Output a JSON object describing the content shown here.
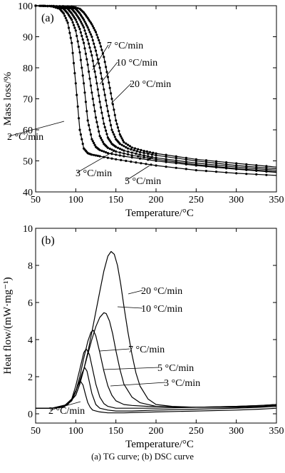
{
  "caption": "(a)  TG  curve; (b) DSC curve",
  "chart_data": [
    {
      "type": "line",
      "panel_label": "(a)",
      "xlabel": "Temperature/°C",
      "ylabel": "Mass loss/%",
      "xlim": [
        50,
        350
      ],
      "ylim": [
        40,
        100
      ],
      "xticks": [
        50,
        100,
        150,
        200,
        250,
        300,
        350
      ],
      "yticks": [
        40,
        50,
        60,
        70,
        80,
        90,
        100
      ],
      "series": [
        {
          "name": "2 °C/min",
          "x": [
            50,
            70,
            80,
            85,
            90,
            95,
            100,
            105,
            110,
            115,
            120,
            130,
            150,
            175,
            200,
            250,
            300,
            350
          ],
          "y": [
            100,
            99.8,
            99,
            97.5,
            94.5,
            88,
            75,
            60,
            54,
            52.5,
            52,
            51.5,
            50.5,
            49.5,
            48.5,
            47,
            46,
            45.3
          ]
        },
        {
          "name": "3 °C/min",
          "x": [
            50,
            75,
            85,
            90,
            95,
            100,
            105,
            110,
            115,
            120,
            125,
            130,
            140,
            160,
            200,
            250,
            300,
            350
          ],
          "y": [
            100,
            99.8,
            99,
            97.5,
            95.5,
            92,
            85,
            75,
            63,
            57,
            54.5,
            53.5,
            52.5,
            51.5,
            50,
            48.5,
            47.3,
            46.3
          ]
        },
        {
          "name": "5 °C/min",
          "x": [
            50,
            80,
            90,
            95,
            100,
            105,
            110,
            115,
            120,
            125,
            130,
            135,
            140,
            150,
            170,
            200,
            250,
            300,
            350
          ],
          "y": [
            100,
            99.8,
            99,
            97.5,
            95.5,
            92.5,
            88,
            81,
            72,
            64,
            58,
            55.5,
            54.2,
            53,
            51.8,
            50.5,
            48.8,
            47.5,
            46.5
          ]
        },
        {
          "name": "7 °C/min",
          "x": [
            50,
            85,
            95,
            100,
            105,
            110,
            115,
            120,
            125,
            130,
            135,
            140,
            145,
            150,
            160,
            180,
            200,
            250,
            300,
            350
          ],
          "y": [
            100,
            99.8,
            99,
            97.5,
            95.5,
            93,
            89,
            84,
            77,
            69,
            62,
            57.5,
            55.5,
            54.5,
            53.3,
            52,
            51,
            49.3,
            48,
            47
          ]
        },
        {
          "name": "10 °C/min",
          "x": [
            50,
            90,
            100,
            105,
            110,
            115,
            120,
            125,
            130,
            135,
            140,
            145,
            150,
            155,
            165,
            180,
            200,
            250,
            300,
            350
          ],
          "y": [
            100,
            99.8,
            99,
            97.5,
            95.5,
            93,
            90,
            85.5,
            80,
            73,
            66,
            60,
            57,
            55.5,
            54,
            52.8,
            51.8,
            50,
            48.5,
            47.5
          ]
        },
        {
          "name": "20 °C/min",
          "x": [
            50,
            95,
            105,
            110,
            115,
            120,
            125,
            130,
            135,
            140,
            145,
            150,
            155,
            160,
            170,
            185,
            200,
            250,
            300,
            350
          ],
          "y": [
            100,
            99.8,
            99,
            97.8,
            96,
            94,
            91.5,
            88,
            83.5,
            77,
            70,
            63,
            58.5,
            56,
            54.3,
            53.2,
            52.4,
            50.5,
            49.2,
            48
          ]
        }
      ],
      "annotations": [
        "7 °C/min",
        "10 °C/min",
        "20 °C/min",
        "2 °C/min",
        "3 °C/min",
        "5 °C/min"
      ]
    },
    {
      "type": "line",
      "panel_label": "(b)",
      "xlabel": "Temperature/°C",
      "ylabel": "Heat flow/(mW·mg⁻¹)",
      "xlim": [
        50,
        350
      ],
      "ylim": [
        -0.5,
        10
      ],
      "xticks": [
        50,
        100,
        150,
        200,
        250,
        300,
        350
      ],
      "yticks": [
        0,
        2,
        4,
        6,
        8,
        10
      ],
      "series": [
        {
          "name": "2 °C/min",
          "x": [
            50,
            70,
            80,
            90,
            95,
            100,
            103,
            106,
            109,
            112,
            115,
            118,
            121,
            125,
            130,
            140,
            160,
            200,
            250,
            300,
            330,
            350
          ],
          "y": [
            0.3,
            0.3,
            0.35,
            0.5,
            0.8,
            1.25,
            1.55,
            1.75,
            1.55,
            1.05,
            0.6,
            0.35,
            0.2,
            0.15,
            0.1,
            0.05,
            0.05,
            0.1,
            0.15,
            0.2,
            0.25,
            0.3
          ]
        },
        {
          "name": "3 °C/min",
          "x": [
            50,
            70,
            85,
            95,
            100,
            105,
            108,
            111,
            114,
            117,
            120,
            125,
            130,
            140,
            150,
            170,
            200,
            250,
            300,
            330,
            350
          ],
          "y": [
            0.3,
            0.3,
            0.35,
            0.7,
            1.2,
            1.8,
            2.2,
            2.5,
            2.3,
            1.7,
            1.1,
            0.5,
            0.3,
            0.2,
            0.15,
            0.15,
            0.2,
            0.25,
            0.3,
            0.35,
            0.4
          ]
        },
        {
          "name": "5 °C/min",
          "x": [
            50,
            70,
            85,
            95,
            100,
            105,
            110,
            113,
            117,
            121,
            125,
            130,
            135,
            140,
            150,
            160,
            180,
            200,
            250,
            300,
            330,
            350
          ],
          "y": [
            0.3,
            0.3,
            0.4,
            0.8,
            1.5,
            2.4,
            3.3,
            3.5,
            3.2,
            2.4,
            1.6,
            0.9,
            0.55,
            0.4,
            0.3,
            0.3,
            0.3,
            0.3,
            0.35,
            0.4,
            0.45,
            0.5
          ]
        },
        {
          "name": "7 °C/min",
          "x": [
            50,
            70,
            85,
            95,
            100,
            105,
            110,
            115,
            119,
            122,
            125,
            130,
            135,
            140,
            145,
            150,
            160,
            170,
            190,
            250,
            300,
            330,
            350
          ],
          "y": [
            0.3,
            0.3,
            0.4,
            0.7,
            1.2,
            2,
            3,
            3.9,
            4.4,
            4.5,
            4.2,
            3.3,
            2.3,
            1.5,
            1,
            0.7,
            0.5,
            0.45,
            0.4,
            0.35,
            0.4,
            0.45,
            0.5
          ]
        },
        {
          "name": "10 °C/min",
          "x": [
            50,
            70,
            90,
            100,
            105,
            110,
            115,
            120,
            125,
            130,
            135,
            138,
            142,
            146,
            150,
            155,
            160,
            170,
            180,
            200,
            250,
            300,
            330,
            350
          ],
          "y": [
            0.3,
            0.3,
            0.5,
            1,
            1.6,
            2.4,
            3.2,
            4,
            4.7,
            5.2,
            5.45,
            5.4,
            5,
            4.3,
            3.4,
            2.4,
            1.6,
            0.9,
            0.6,
            0.4,
            0.35,
            0.35,
            0.4,
            0.45
          ]
        },
        {
          "name": "20 °C/min",
          "x": [
            50,
            70,
            90,
            100,
            105,
            110,
            115,
            120,
            125,
            130,
            135,
            140,
            144,
            148,
            152,
            156,
            160,
            165,
            170,
            175,
            180,
            190,
            200,
            220,
            250,
            300,
            330,
            350
          ],
          "y": [
            0.3,
            0.3,
            0.5,
            1,
            1.6,
            2.4,
            3.3,
            4.4,
            5.5,
            6.6,
            7.7,
            8.5,
            8.75,
            8.6,
            8,
            7,
            5.8,
            4.4,
            3.2,
            2.2,
            1.5,
            0.8,
            0.5,
            0.4,
            0.35,
            0.35,
            0.4,
            0.45
          ]
        }
      ],
      "annotations": [
        "20 °C/min",
        "10 °C/min",
        "7 °C/min",
        "5 °C/min",
        "3 °C/min",
        "2 °C/min"
      ]
    }
  ]
}
